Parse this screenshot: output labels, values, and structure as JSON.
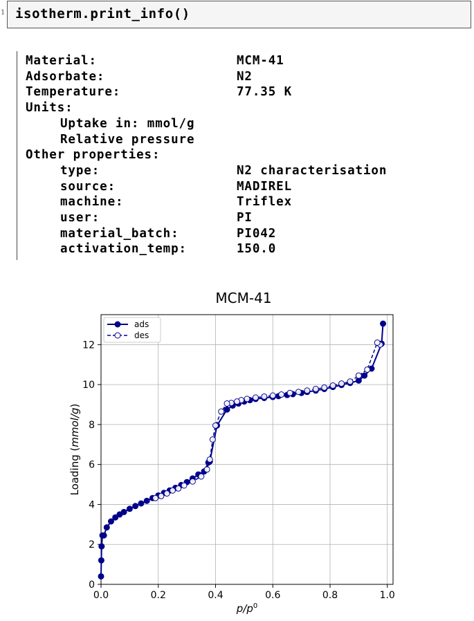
{
  "code_cell": {
    "line_number": "1",
    "code": "isotherm.print_info()"
  },
  "info": [
    {
      "key": "Material:",
      "value": "MCM-41",
      "indent": false
    },
    {
      "key": "Adsorbate:",
      "value": "N2",
      "indent": false
    },
    {
      "key": "Temperature:",
      "value": "77.35 K",
      "indent": false
    },
    {
      "key": "Units:",
      "value": "",
      "indent": false
    },
    {
      "key": "Uptake in: mmol/g",
      "value": "",
      "indent": true
    },
    {
      "key": "Relative pressure",
      "value": "",
      "indent": true
    },
    {
      "key": "Other properties:",
      "value": "",
      "indent": false
    },
    {
      "key": "type:",
      "value": "N2 characterisation",
      "indent": true
    },
    {
      "key": "source:",
      "value": "MADIREL",
      "indent": true
    },
    {
      "key": "machine:",
      "value": "Triflex",
      "indent": true
    },
    {
      "key": "user:",
      "value": "PI",
      "indent": true
    },
    {
      "key": "material_batch:",
      "value": "PI042",
      "indent": true
    },
    {
      "key": "activation_temp:",
      "value": "150.0",
      "indent": true
    }
  ],
  "chart_data": {
    "type": "line",
    "title": "MCM-41",
    "xlabel": "p/p⁰",
    "ylabel": "Loading (mmol/g)",
    "xlim": [
      0.0,
      1.02
    ],
    "ylim": [
      0,
      13.5
    ],
    "xticks": [
      "0.0",
      "0.2",
      "0.4",
      "0.6",
      "0.8",
      "1.0"
    ],
    "xtick_values": [
      0.0,
      0.2,
      0.4,
      0.6,
      0.8,
      1.0
    ],
    "yticks": [
      "0",
      "2",
      "4",
      "6",
      "8",
      "10",
      "12"
    ],
    "ytick_values": [
      0,
      2,
      4,
      6,
      8,
      10,
      12
    ],
    "grid": true,
    "legend_position": "top-left",
    "series_color": "#00008b",
    "series": [
      {
        "name": "ads",
        "style": "solid",
        "marker": "filled-circle",
        "x": [
          0.0,
          0.001,
          0.002,
          0.005,
          0.01,
          0.02,
          0.035,
          0.05,
          0.065,
          0.08,
          0.1,
          0.12,
          0.14,
          0.16,
          0.18,
          0.2,
          0.22,
          0.24,
          0.26,
          0.28,
          0.3,
          0.32,
          0.34,
          0.36,
          0.375,
          0.38,
          0.405,
          0.44,
          0.46,
          0.48,
          0.5,
          0.52,
          0.54,
          0.57,
          0.6,
          0.62,
          0.65,
          0.67,
          0.7,
          0.72,
          0.75,
          0.78,
          0.81,
          0.84,
          0.87,
          0.9,
          0.92,
          0.945,
          0.98,
          0.985
        ],
        "y": [
          0.4,
          1.2,
          1.9,
          2.45,
          2.45,
          2.85,
          3.15,
          3.35,
          3.5,
          3.62,
          3.78,
          3.92,
          4.05,
          4.18,
          4.32,
          4.45,
          4.58,
          4.7,
          4.83,
          4.97,
          5.12,
          5.3,
          5.5,
          5.65,
          6.1,
          6.15,
          7.95,
          8.75,
          8.95,
          9.05,
          9.15,
          9.22,
          9.28,
          9.33,
          9.38,
          9.42,
          9.48,
          9.52,
          9.58,
          9.63,
          9.7,
          9.78,
          9.88,
          9.98,
          10.08,
          10.2,
          10.45,
          10.8,
          12.05,
          13.05
        ]
      },
      {
        "name": "des",
        "style": "dashed",
        "marker": "open-circle",
        "x": [
          0.975,
          0.965,
          0.93,
          0.9,
          0.87,
          0.84,
          0.81,
          0.78,
          0.75,
          0.72,
          0.69,
          0.66,
          0.63,
          0.6,
          0.57,
          0.54,
          0.51,
          0.49,
          0.475,
          0.455,
          0.44,
          0.42,
          0.4,
          0.39,
          0.38,
          0.37,
          0.35,
          0.32,
          0.29,
          0.27,
          0.25,
          0.23,
          0.21,
          0.19
        ],
        "y": [
          12.0,
          12.1,
          10.75,
          10.45,
          10.15,
          10.05,
          9.95,
          9.85,
          9.78,
          9.7,
          9.63,
          9.58,
          9.5,
          9.45,
          9.4,
          9.35,
          9.28,
          9.22,
          9.15,
          9.08,
          9.05,
          8.65,
          7.95,
          7.25,
          6.25,
          5.75,
          5.4,
          5.15,
          4.95,
          4.8,
          4.7,
          4.55,
          4.42,
          4.32
        ]
      }
    ]
  }
}
